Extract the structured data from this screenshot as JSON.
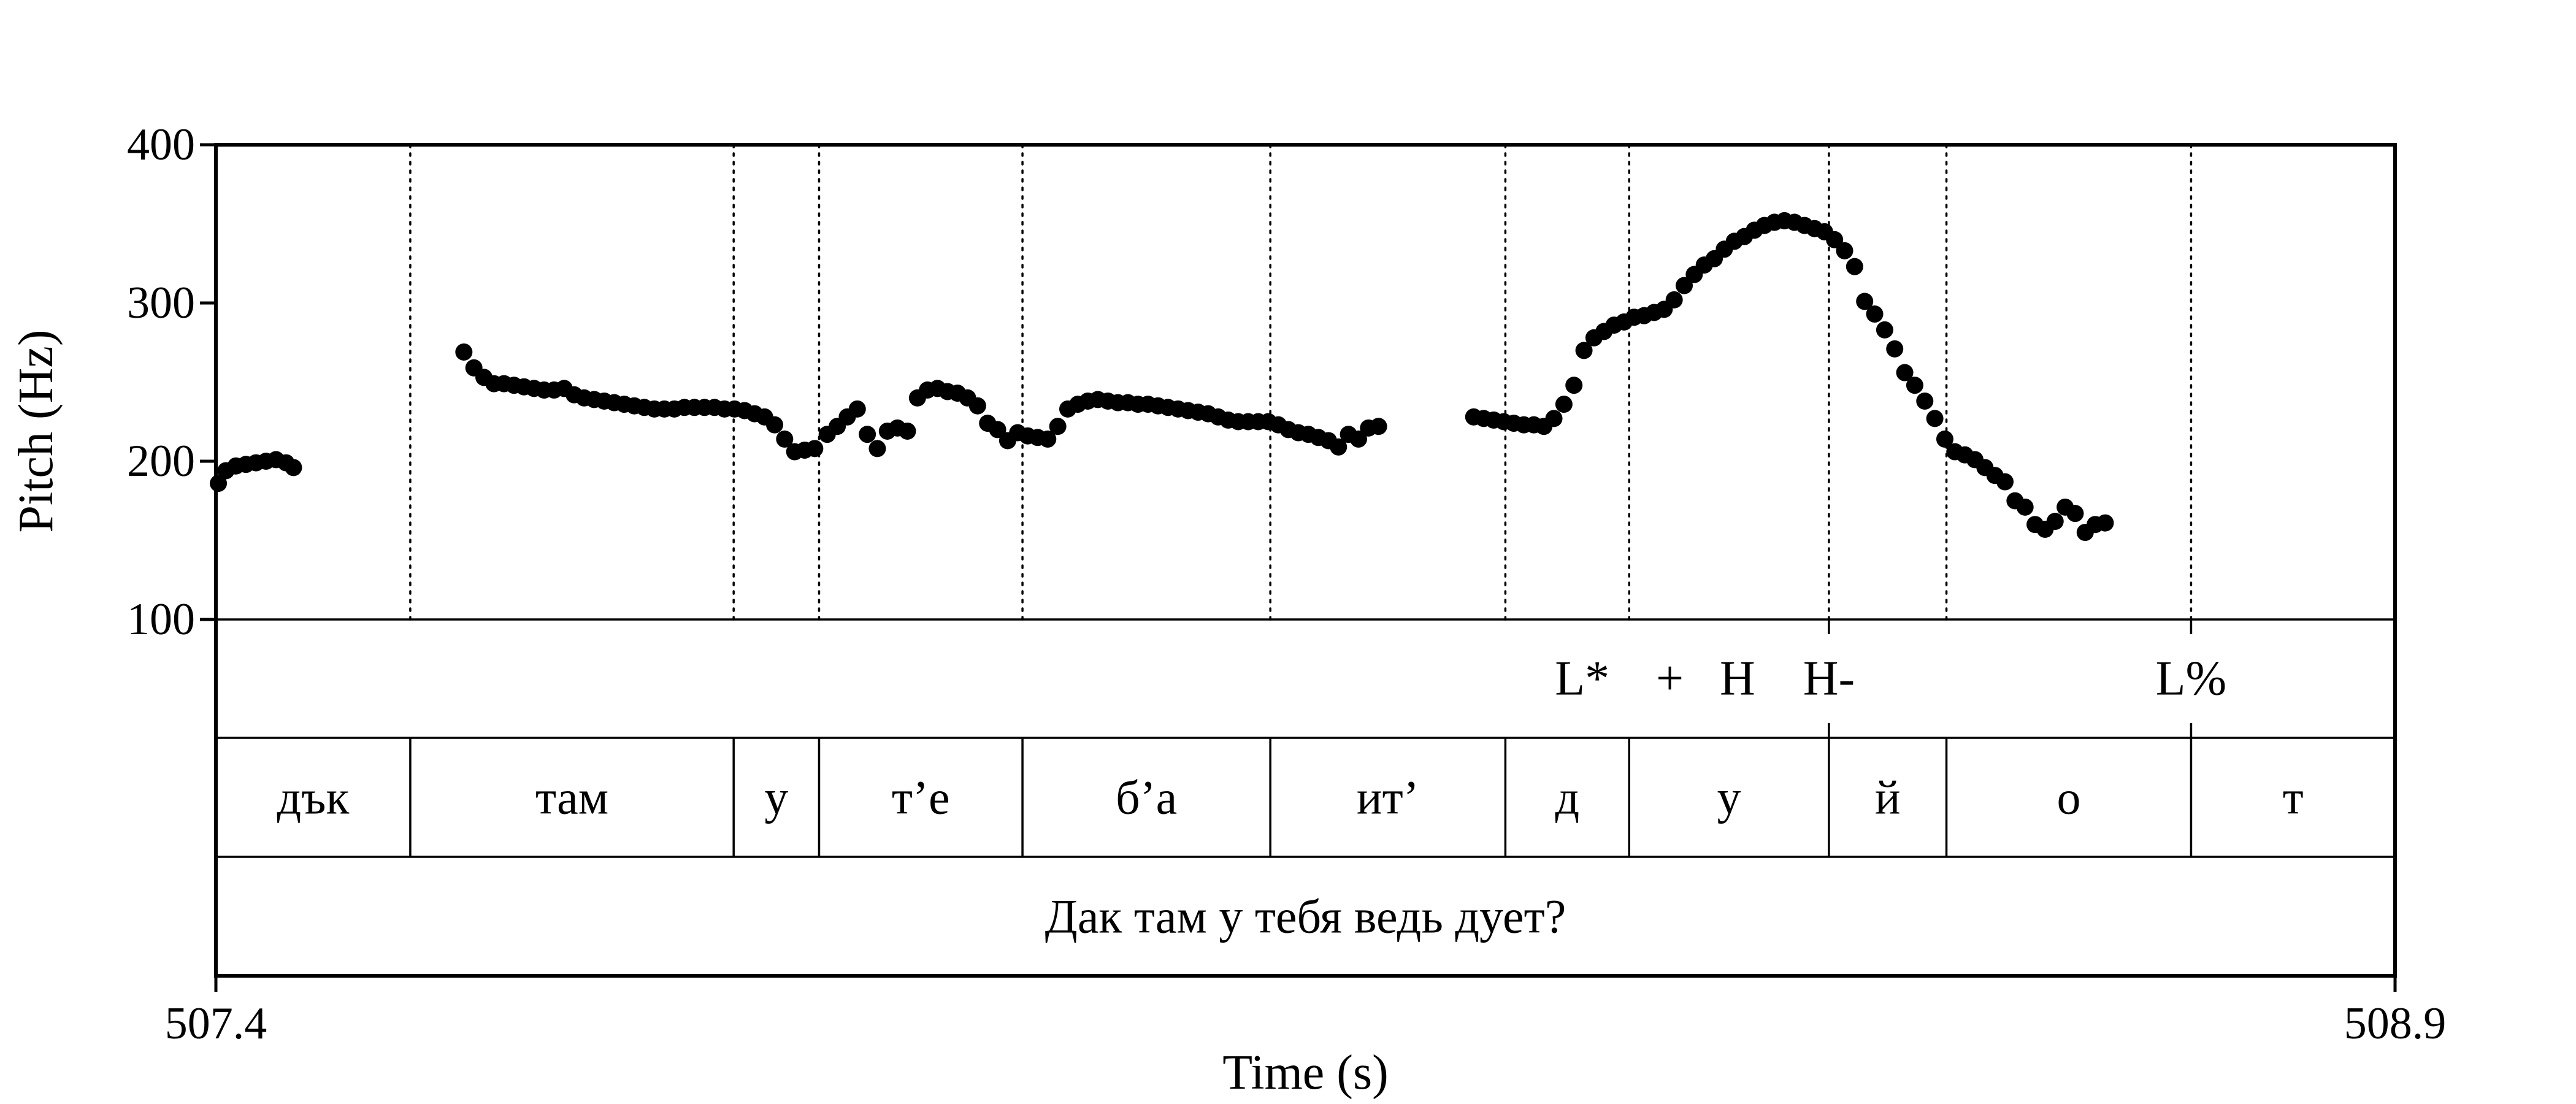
{
  "chart_data": {
    "type": "scatter",
    "xlabel": "Time (s)",
    "ylabel": "Pitch (Hz)",
    "xlim": [
      507.4,
      508.9
    ],
    "ylim": [
      100,
      400
    ],
    "x_ticks": [
      "507.4",
      "508.9"
    ],
    "y_ticks": [
      {
        "value": 100,
        "label": "100"
      },
      {
        "value": 200,
        "label": "200"
      },
      {
        "value": 300,
        "label": "300"
      },
      {
        "value": 400,
        "label": "400"
      }
    ],
    "grid": false,
    "boundaries": [
      507.5338,
      507.7564,
      507.8152,
      507.9552,
      508.1258,
      508.2876,
      508.3728,
      508.5103,
      508.5912,
      508.7596
    ],
    "tones": [
      {
        "label": "L*",
        "x": 508.3405
      },
      {
        "label": "+",
        "x": 508.4008
      },
      {
        "label": "H",
        "x": 508.4474
      },
      {
        "label": "H-",
        "x": 508.5103
      },
      {
        "label": "L%",
        "x": 508.7596
      }
    ],
    "segments": [
      {
        "label": "дък",
        "start": 507.4,
        "end": 507.5338
      },
      {
        "label": "там",
        "start": 507.5338,
        "end": 507.7564
      },
      {
        "label": "у",
        "start": 507.7564,
        "end": 507.8152
      },
      {
        "label": "т’е",
        "start": 507.8152,
        "end": 507.9552
      },
      {
        "label": "б’а",
        "start": 507.9552,
        "end": 508.1258
      },
      {
        "label": "ит’",
        "start": 508.1258,
        "end": 508.2876
      },
      {
        "label": "д",
        "start": 508.2876,
        "end": 508.3728
      },
      {
        "label": "у",
        "start": 508.3728,
        "end": 508.5103
      },
      {
        "label": "й",
        "start": 508.5103,
        "end": 508.5912
      },
      {
        "label": "о",
        "start": 508.5912,
        "end": 508.7596
      },
      {
        "label": "т",
        "start": 508.7596,
        "end": 508.9
      }
    ],
    "utterance": "Дак там у тебя ведь дует?",
    "series": [
      {
        "points": [
          [
            507.4017,
            186
          ],
          [
            507.4069,
            194
          ],
          [
            507.4138,
            197
          ],
          [
            507.4207,
            198
          ],
          [
            507.4276,
            199
          ],
          [
            507.4345,
            200
          ],
          [
            507.4414,
            201
          ],
          [
            507.4483,
            199
          ],
          [
            507.4534,
            196
          ],
          [
            507.5707,
            269
          ],
          [
            507.5776,
            259
          ],
          [
            507.5845,
            253
          ],
          [
            507.5914,
            249
          ],
          [
            507.5983,
            249
          ],
          [
            507.6052,
            248
          ],
          [
            507.6121,
            247
          ],
          [
            507.619,
            246
          ],
          [
            507.6259,
            245
          ],
          [
            507.6328,
            245
          ],
          [
            507.6397,
            246
          ],
          [
            507.6466,
            242
          ],
          [
            507.6535,
            240
          ],
          [
            507.6604,
            239
          ],
          [
            507.6673,
            238
          ],
          [
            507.6742,
            237
          ],
          [
            507.6811,
            236
          ],
          [
            507.688,
            235
          ],
          [
            507.6949,
            234
          ],
          [
            507.7018,
            233
          ],
          [
            507.7087,
            233
          ],
          [
            507.7156,
            233
          ],
          [
            507.7225,
            234
          ],
          [
            507.7294,
            234
          ],
          [
            507.7363,
            234
          ],
          [
            507.7432,
            234
          ],
          [
            507.7501,
            233
          ],
          [
            507.757,
            233
          ],
          [
            507.7639,
            232
          ],
          [
            507.7708,
            230
          ],
          [
            507.7777,
            228
          ],
          [
            507.7846,
            223
          ],
          [
            507.7915,
            214
          ],
          [
            507.7984,
            206
          ],
          [
            507.8053,
            207
          ],
          [
            507.8122,
            208
          ],
          [
            507.8208,
            217
          ],
          [
            507.8277,
            222
          ],
          [
            507.8346,
            228
          ],
          [
            507.8415,
            233
          ],
          [
            507.8484,
            217
          ],
          [
            507.8553,
            208
          ],
          [
            507.8622,
            219
          ],
          [
            507.8691,
            221
          ],
          [
            507.876,
            219
          ],
          [
            507.8829,
            240
          ],
          [
            507.8898,
            245
          ],
          [
            507.8967,
            246
          ],
          [
            507.9036,
            244
          ],
          [
            507.9105,
            243
          ],
          [
            507.9174,
            240
          ],
          [
            507.9243,
            235
          ],
          [
            507.9312,
            224
          ],
          [
            507.9381,
            220
          ],
          [
            507.945,
            213
          ],
          [
            507.9519,
            218
          ],
          [
            507.9588,
            216
          ],
          [
            507.9657,
            215
          ],
          [
            507.9726,
            214
          ],
          [
            507.9795,
            222
          ],
          [
            507.9864,
            233
          ],
          [
            507.9933,
            236
          ],
          [
            508.0002,
            238
          ],
          [
            508.0071,
            239
          ],
          [
            508.014,
            238
          ],
          [
            508.0209,
            237
          ],
          [
            508.0278,
            237
          ],
          [
            508.0347,
            236
          ],
          [
            508.0416,
            236
          ],
          [
            508.0485,
            235
          ],
          [
            508.0554,
            234
          ],
          [
            508.0623,
            233
          ],
          [
            508.0692,
            232
          ],
          [
            508.0761,
            231
          ],
          [
            508.083,
            230
          ],
          [
            508.0899,
            228
          ],
          [
            508.0968,
            226
          ],
          [
            508.1037,
            225
          ],
          [
            508.1106,
            225
          ],
          [
            508.1175,
            225
          ],
          [
            508.1244,
            225
          ],
          [
            508.1313,
            223
          ],
          [
            508.1382,
            220
          ],
          [
            508.1451,
            218
          ],
          [
            508.152,
            217
          ],
          [
            508.1589,
            215
          ],
          [
            508.1658,
            213
          ],
          [
            508.1727,
            209
          ],
          [
            508.1796,
            217
          ],
          [
            508.1865,
            214
          ],
          [
            508.1934,
            221
          ],
          [
            508.2003,
            222
          ],
          [
            508.2658,
            228
          ],
          [
            508.2727,
            227
          ],
          [
            508.2796,
            226
          ],
          [
            508.2865,
            225
          ],
          [
            508.2934,
            224
          ],
          [
            508.3003,
            223
          ],
          [
            508.3072,
            223
          ],
          [
            508.3141,
            222
          ],
          [
            508.321,
            227
          ],
          [
            508.3279,
            236
          ],
          [
            508.3348,
            248
          ],
          [
            508.3417,
            270
          ],
          [
            508.3486,
            278
          ],
          [
            508.3555,
            282
          ],
          [
            508.3624,
            286
          ],
          [
            508.3693,
            288
          ],
          [
            508.3762,
            291
          ],
          [
            508.3831,
            292
          ],
          [
            508.39,
            294
          ],
          [
            508.3969,
            296
          ],
          [
            508.4038,
            302
          ],
          [
            508.4107,
            311
          ],
          [
            508.4176,
            318
          ],
          [
            508.4245,
            324
          ],
          [
            508.4314,
            328
          ],
          [
            508.4383,
            334
          ],
          [
            508.4452,
            339
          ],
          [
            508.4521,
            342
          ],
          [
            508.459,
            346
          ],
          [
            508.4659,
            349
          ],
          [
            508.4728,
            351
          ],
          [
            508.4797,
            352
          ],
          [
            508.4866,
            351
          ],
          [
            508.4935,
            349
          ],
          [
            508.5004,
            347
          ],
          [
            508.5073,
            345
          ],
          [
            508.5142,
            340
          ],
          [
            508.5211,
            333
          ],
          [
            508.528,
            323
          ],
          [
            508.5349,
            301
          ],
          [
            508.5418,
            293
          ],
          [
            508.5487,
            283
          ],
          [
            508.5556,
            271
          ],
          [
            508.5625,
            256
          ],
          [
            508.5694,
            248
          ],
          [
            508.5763,
            238
          ],
          [
            508.5832,
            227
          ],
          [
            508.5901,
            214
          ],
          [
            508.597,
            206
          ],
          [
            508.6039,
            204
          ],
          [
            508.6108,
            201
          ],
          [
            508.6177,
            196
          ],
          [
            508.6246,
            191
          ],
          [
            508.6315,
            187
          ],
          [
            508.6384,
            175
          ],
          [
            508.6453,
            171
          ],
          [
            508.6522,
            160
          ],
          [
            508.6591,
            157
          ],
          [
            508.666,
            162
          ],
          [
            508.6729,
            171
          ],
          [
            508.6798,
            167
          ],
          [
            508.6867,
            155
          ],
          [
            508.6936,
            160
          ],
          [
            508.7005,
            161
          ]
        ]
      }
    ]
  }
}
